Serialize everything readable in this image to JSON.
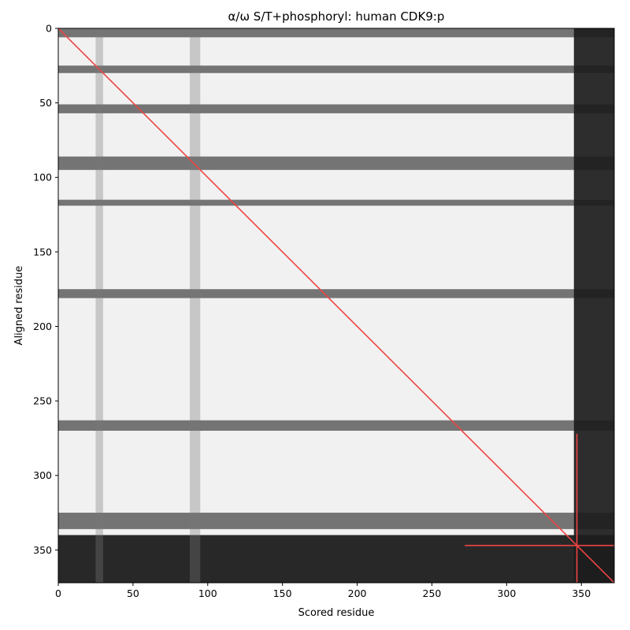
{
  "chart_data": {
    "type": "heatmap",
    "title": "α/ω S/T+phosphoryl: human CDK9:p",
    "xlabel": "Scored residue",
    "ylabel": "Aligned residue",
    "n_residues": 372,
    "xlim": [
      0,
      372
    ],
    "ylim": [
      372,
      0
    ],
    "xticks": [
      0,
      50,
      100,
      150,
      200,
      250,
      300,
      350
    ],
    "yticks": [
      0,
      50,
      100,
      150,
      200,
      250,
      300,
      350
    ],
    "colormap": "grayscale (low = white, high = black)",
    "dark_row_bands": [
      {
        "start": 0,
        "end": 6
      },
      {
        "start": 25,
        "end": 30
      },
      {
        "start": 51,
        "end": 57
      },
      {
        "start": 86,
        "end": 95
      },
      {
        "start": 115,
        "end": 119
      },
      {
        "start": 175,
        "end": 181
      },
      {
        "start": 263,
        "end": 270
      },
      {
        "start": 325,
        "end": 336
      },
      {
        "start": 340,
        "end": 372
      }
    ],
    "dark_column_bands": [
      {
        "start": 345,
        "end": 372
      },
      {
        "start": 88,
        "end": 95
      },
      {
        "start": 25,
        "end": 30
      }
    ],
    "diagonal_line": {
      "from": [
        0,
        0
      ],
      "to": [
        372,
        372
      ],
      "color": "#ee4444"
    },
    "crosshair": {
      "x": 347,
      "y": 347,
      "x_range": [
        272,
        372
      ],
      "y_range": [
        272,
        372
      ],
      "color": "#ee4444"
    }
  }
}
